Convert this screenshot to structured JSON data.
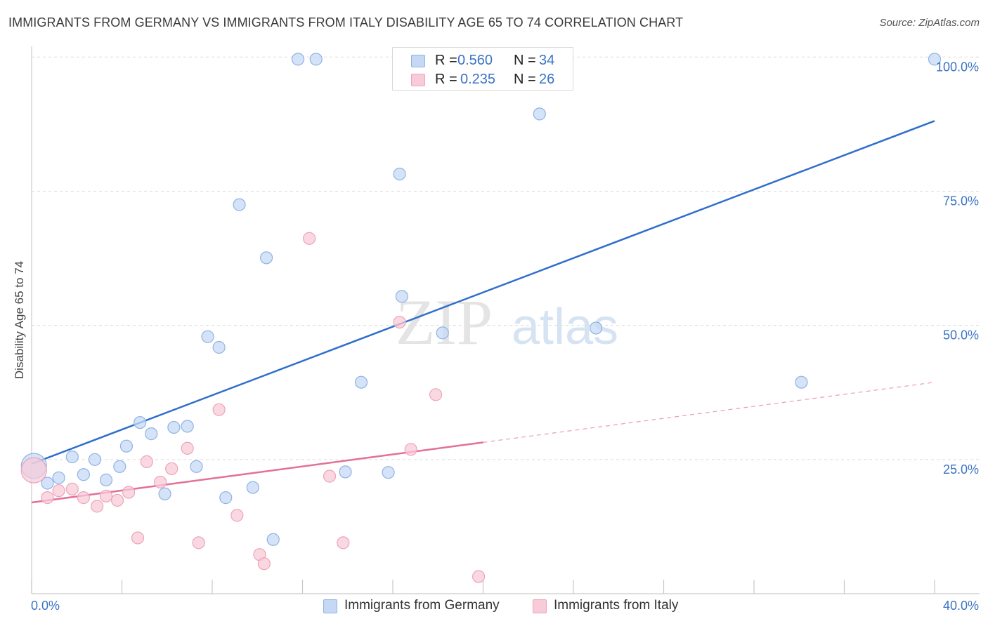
{
  "title": "IMMIGRANTS FROM GERMANY VS IMMIGRANTS FROM ITALY DISABILITY AGE 65 TO 74 CORRELATION CHART",
  "source": "Source: ZipAtlas.com",
  "legend": {
    "germany": {
      "r_label": "R =",
      "r_value": "0.560",
      "n_label": "N =",
      "n_value": "34"
    },
    "italy": {
      "r_label": "R =",
      "r_value": "0.235",
      "n_label": "N =",
      "n_value": "26"
    }
  },
  "watermark": {
    "zip": "ZIP",
    "atlas": "atlas"
  },
  "colors": {
    "germany_fill": "#c5d9f5",
    "germany_stroke": "#8fb3e3",
    "germany_line": "#2f6fcc",
    "italy_fill": "#f8cbd8",
    "italy_stroke": "#eea3ba",
    "italy_line": "#e46f97",
    "tick_label": "#3b73c4",
    "grid": "#dcdcdc"
  },
  "chart_data": {
    "type": "scatter",
    "title": "IMMIGRANTS FROM GERMANY VS IMMIGRANTS FROM ITALY DISABILITY AGE 65 TO 74 CORRELATION CHART",
    "xlabel": "",
    "ylabel": "Disability Age 65 to 74",
    "xlim": [
      0,
      40
    ],
    "ylim": [
      0,
      102
    ],
    "x_tick_labels": [
      "0.0%",
      "40.0%"
    ],
    "y_ticks": [
      25,
      50,
      75,
      100
    ],
    "y_tick_labels": [
      "25.0%",
      "50.0%",
      "75.0%",
      "100.0%"
    ],
    "grid": true,
    "legend_position": "top-center",
    "series": [
      {
        "name": "Immigrants from Germany",
        "points": [
          [
            0.1,
            23.8
          ],
          [
            0.7,
            20.6
          ],
          [
            1.2,
            21.6
          ],
          [
            1.8,
            25.5
          ],
          [
            2.3,
            22.2
          ],
          [
            2.8,
            25.0
          ],
          [
            3.3,
            21.2
          ],
          [
            3.9,
            23.7
          ],
          [
            4.2,
            27.5
          ],
          [
            4.8,
            31.9
          ],
          [
            5.3,
            29.8
          ],
          [
            5.9,
            18.6
          ],
          [
            6.3,
            31.0
          ],
          [
            6.9,
            31.2
          ],
          [
            7.3,
            23.7
          ],
          [
            7.8,
            47.9
          ],
          [
            8.3,
            45.9
          ],
          [
            8.6,
            17.9
          ],
          [
            9.2,
            72.5
          ],
          [
            9.8,
            19.8
          ],
          [
            10.4,
            62.6
          ],
          [
            10.7,
            10.1
          ],
          [
            11.8,
            99.6
          ],
          [
            12.6,
            99.6
          ],
          [
            13.9,
            22.7
          ],
          [
            14.6,
            39.4
          ],
          [
            15.8,
            22.6
          ],
          [
            16.3,
            78.2
          ],
          [
            16.4,
            55.4
          ],
          [
            18.2,
            48.6
          ],
          [
            22.5,
            89.4
          ],
          [
            25.0,
            49.5
          ],
          [
            34.1,
            39.4
          ],
          [
            40.0,
            99.6
          ]
        ]
      },
      {
        "name": "Immigrants from Italy",
        "points": [
          [
            0.1,
            23.0
          ],
          [
            0.7,
            17.9
          ],
          [
            1.2,
            19.2
          ],
          [
            1.8,
            19.5
          ],
          [
            2.3,
            17.9
          ],
          [
            2.9,
            16.3
          ],
          [
            3.3,
            18.2
          ],
          [
            3.8,
            17.4
          ],
          [
            4.3,
            18.9
          ],
          [
            4.7,
            10.4
          ],
          [
            5.1,
            24.6
          ],
          [
            5.7,
            20.8
          ],
          [
            6.2,
            23.3
          ],
          [
            6.9,
            27.1
          ],
          [
            7.4,
            9.5
          ],
          [
            8.3,
            34.3
          ],
          [
            9.1,
            14.6
          ],
          [
            10.1,
            7.3
          ],
          [
            10.3,
            5.6
          ],
          [
            12.3,
            66.2
          ],
          [
            13.2,
            21.9
          ],
          [
            13.8,
            9.5
          ],
          [
            16.3,
            50.6
          ],
          [
            16.8,
            26.9
          ],
          [
            17.9,
            37.1
          ],
          [
            19.8,
            3.2
          ]
        ]
      }
    ],
    "trend_lines": [
      {
        "series": "Immigrants from Germany",
        "x": [
          0,
          40
        ],
        "y": [
          24.2,
          88.1
        ],
        "style": "solid"
      },
      {
        "series": "Immigrants from Italy",
        "x": [
          0,
          20
        ],
        "y": [
          17.0,
          28.2
        ],
        "style": "solid"
      },
      {
        "series": "Immigrants from Italy",
        "x": [
          20,
          40
        ],
        "y": [
          28.2,
          39.4
        ],
        "style": "dashed"
      }
    ]
  }
}
